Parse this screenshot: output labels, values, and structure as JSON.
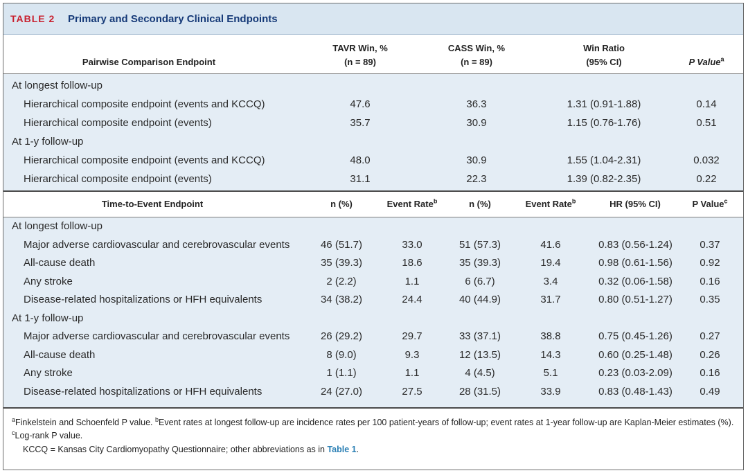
{
  "title": {
    "number": "TABLE 2",
    "text": "Primary and Secondary Clinical Endpoints"
  },
  "pairwise": {
    "headers": {
      "endpoint": "Pairwise Comparison Endpoint",
      "tavr_line1": "TAVR Win, %",
      "tavr_line2": "(n = 89)",
      "cass_line1": "CASS Win, %",
      "cass_line2": "(n = 89)",
      "ratio_line1": "Win Ratio",
      "ratio_line2": "(95% CI)",
      "p": "P Value",
      "p_sup": "a"
    },
    "rows": [
      {
        "group": "At longest follow-up"
      },
      {
        "label": "Hierarchical composite endpoint (events and KCCQ)",
        "tavr": "47.6",
        "cass": "36.3",
        "ratio": "1.31 (0.91-1.88)",
        "p": "0.14"
      },
      {
        "label": "Hierarchical composite endpoint (events)",
        "tavr": "35.7",
        "cass": "30.9",
        "ratio": "1.15 (0.76-1.76)",
        "p": "0.51"
      },
      {
        "group": "At 1-y follow-up"
      },
      {
        "label": "Hierarchical composite endpoint (events and KCCQ)",
        "tavr": "48.0",
        "cass": "30.9",
        "ratio": "1.55 (1.04-2.31)",
        "p": "0.032"
      },
      {
        "label": "Hierarchical composite endpoint (events)",
        "tavr": "31.1",
        "cass": "22.3",
        "ratio": "1.39 (0.82-2.35)",
        "p": "0.22"
      }
    ]
  },
  "tte": {
    "headers": {
      "endpoint": "Time-to-Event Endpoint",
      "n1": "n (%)",
      "rate1": "Event Rate",
      "rate1_sup": "b",
      "n2": "n (%)",
      "rate2": "Event Rate",
      "rate2_sup": "b",
      "hr": "HR (95% CI)",
      "p": "P Value",
      "p_sup": "c"
    },
    "rows": [
      {
        "group": "At longest follow-up"
      },
      {
        "label": "Major adverse cardiovascular and cerebrovascular events",
        "n1": "46 (51.7)",
        "r1": "33.0",
        "n2": "51 (57.3)",
        "r2": "41.6",
        "hr": "0.83 (0.56-1.24)",
        "p": "0.37"
      },
      {
        "label": "All-cause death",
        "n1": "35 (39.3)",
        "r1": "18.6",
        "n2": "35 (39.3)",
        "r2": "19.4",
        "hr": "0.98 (0.61-1.56)",
        "p": "0.92"
      },
      {
        "label": "Any stroke",
        "n1": "2 (2.2)",
        "r1": "1.1",
        "n2": "6 (6.7)",
        "r2": "3.4",
        "hr": "0.32 (0.06-1.58)",
        "p": "0.16"
      },
      {
        "label": "Disease-related hospitalizations or HFH equivalents",
        "n1": "34 (38.2)",
        "r1": "24.4",
        "n2": "40 (44.9)",
        "r2": "31.7",
        "hr": "0.80 (0.51-1.27)",
        "p": "0.35"
      },
      {
        "group": "At 1-y follow-up"
      },
      {
        "label": "Major adverse cardiovascular and cerebrovascular events",
        "n1": "26 (29.2)",
        "r1": "29.7",
        "n2": "33 (37.1)",
        "r2": "38.8",
        "hr": "0.75 (0.45-1.26)",
        "p": "0.27"
      },
      {
        "label": "All-cause death",
        "n1": "8 (9.0)",
        "r1": "9.3",
        "n2": "12 (13.5)",
        "r2": "14.3",
        "hr": "0.60 (0.25-1.48)",
        "p": "0.26"
      },
      {
        "label": "Any stroke",
        "n1": "1 (1.1)",
        "r1": "1.1",
        "n2": "4 (4.5)",
        "r2": "5.1",
        "hr": "0.23 (0.03-2.09)",
        "p": "0.16"
      },
      {
        "label": "Disease-related hospitalizations or HFH equivalents",
        "n1": "24 (27.0)",
        "r1": "27.5",
        "n2": "28 (31.5)",
        "r2": "33.9",
        "hr": "0.83 (0.48-1.43)",
        "p": "0.49"
      }
    ]
  },
  "footnotes": {
    "a_sup": "a",
    "a_text": "Finkelstein and Schoenfeld P value. ",
    "b_sup": "b",
    "b_text": "Event rates at longest follow-up are incidence rates per 100 patient-years of follow-up; event rates at 1-year follow-up are Kaplan-Meier estimates (%). ",
    "c_sup": "c",
    "c_text": "Log-rank P value.",
    "abbrev_text": "KCCQ = Kansas City Cardiomyopathy Questionnaire; other abbreviations as in ",
    "abbrev_link": "Table 1",
    "abbrev_end": "."
  },
  "colors": {
    "title_red": "#c8202e",
    "title_blue": "#163a78",
    "band": "#e4edf5",
    "header_band": "#d9e6f1",
    "link": "#2a7fb4"
  }
}
